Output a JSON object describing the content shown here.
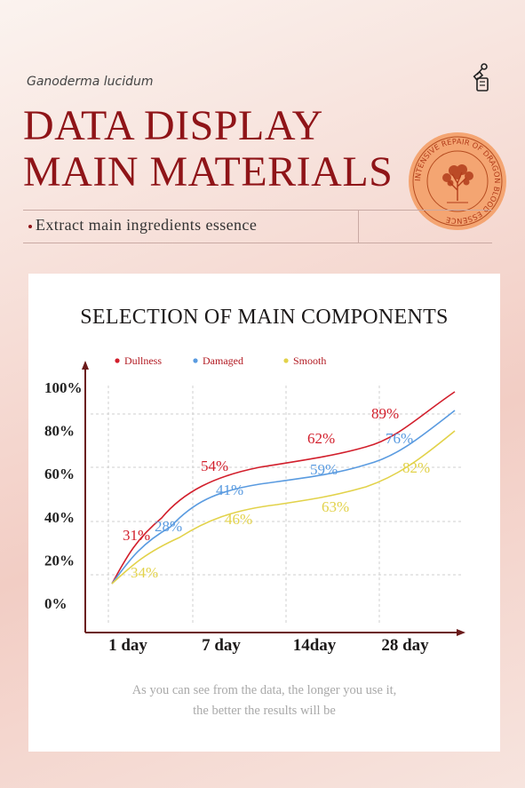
{
  "header": {
    "subtitle": "Ganoderma lucidum",
    "headline_line1": "DATA DISPLAY",
    "headline_line2": "MAIN MATERIALS",
    "tagline": "Extract main ingredients essence",
    "seal_text": "INTENSIVE REPAIR OF DRAGON BLOOD ESSENCE"
  },
  "colors": {
    "brand_red": "#8f1418",
    "dullness": "#d21f2c",
    "damaged": "#5a9be0",
    "smooth": "#e2d24a"
  },
  "chart_data": {
    "type": "line",
    "title": "SELECTION OF MAIN COMPONENTS",
    "categories": [
      "1 day",
      "7 day",
      "14day",
      "28 day"
    ],
    "y_tick_labels": [
      "100%",
      "80%",
      "60%",
      "40%",
      "20%",
      "0%"
    ],
    "ylim": [
      0,
      100
    ],
    "grid": true,
    "legend_position": "top",
    "series": [
      {
        "name": "Dullness",
        "color": "#d21f2c",
        "labels": [
          "31%",
          "54%",
          "62%",
          "89%"
        ]
      },
      {
        "name": "Damaged",
        "color": "#5a9be0",
        "labels": [
          "28%",
          "41%",
          "59%",
          "76%"
        ]
      },
      {
        "name": "Smooth",
        "color": "#e2d24a",
        "labels": [
          "34%",
          "46%",
          "63%",
          "82%"
        ]
      }
    ]
  },
  "footer": {
    "caption_line1": "As you can see from the data, the longer you use it,",
    "caption_line2": "the better the results will be"
  }
}
